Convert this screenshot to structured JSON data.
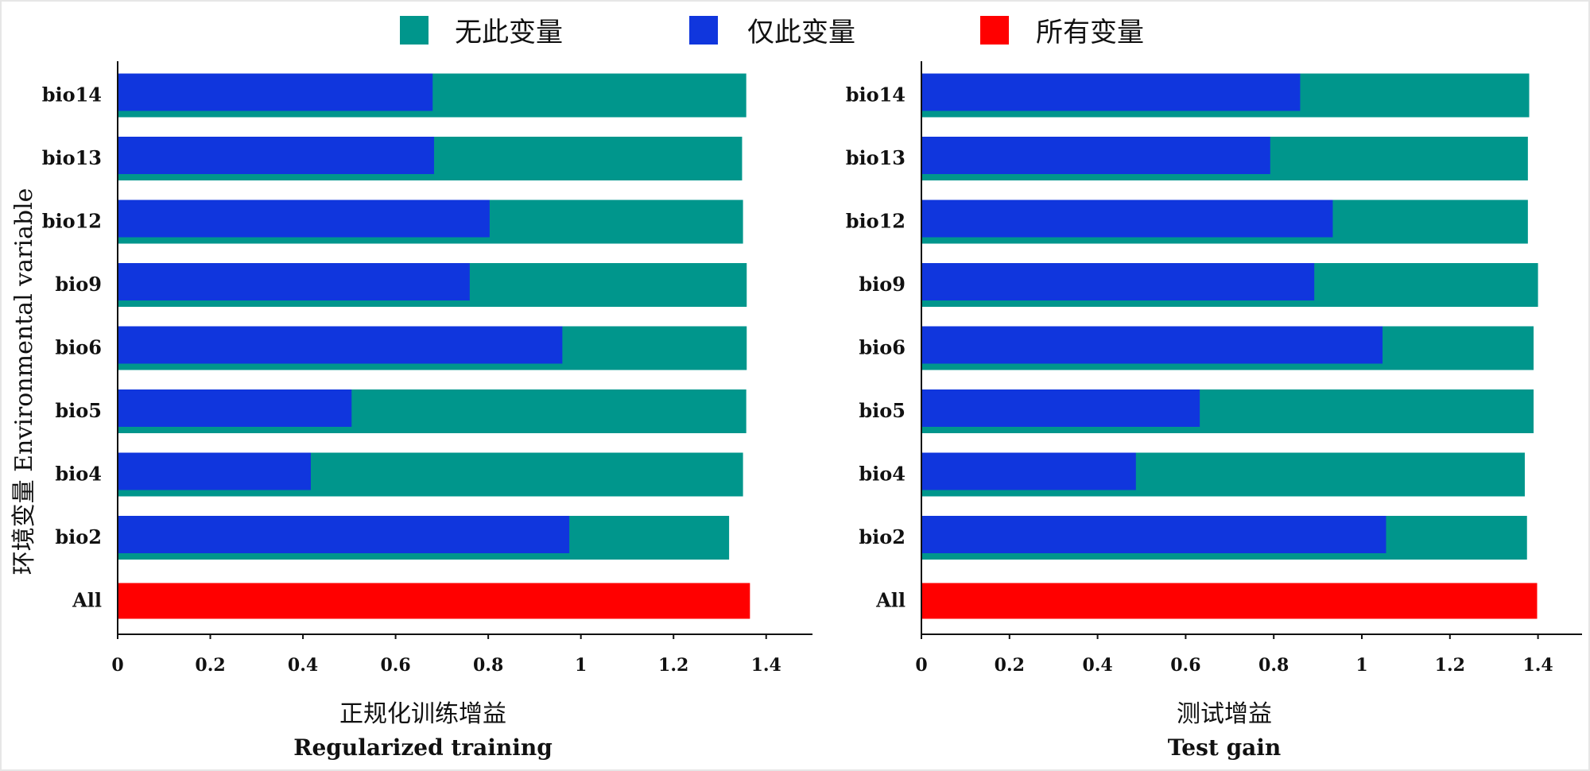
{
  "colors": {
    "without": "#00968C",
    "only": "#1036DD",
    "all": "#FF0000",
    "axis": "#111111"
  },
  "legend": [
    {
      "key": "without",
      "label": "无此变量"
    },
    {
      "key": "only",
      "label": "仅此变量"
    },
    {
      "key": "all",
      "label": "所有变量"
    }
  ],
  "ylabel": "环境变量 Environmental variable",
  "chart_data": [
    {
      "type": "bar",
      "orientation": "horizontal",
      "xlabel_cn": "正规化训练增益",
      "xlabel_en": "Regularized training",
      "xlim": [
        0,
        1.5
      ],
      "xticks": [
        "0",
        "0.2",
        "0.4",
        "0.6",
        "0.8",
        "1",
        "1.2",
        "1.4"
      ],
      "categories": [
        "bio14",
        "bio13",
        "bio12",
        "bio9",
        "bio6",
        "bio5",
        "bio4",
        "bio2",
        "All"
      ],
      "series": [
        {
          "name": "无此变量",
          "key": "without",
          "values": [
            1.357,
            1.348,
            1.35,
            1.358,
            1.358,
            1.357,
            1.35,
            1.32,
            null
          ]
        },
        {
          "name": "仅此变量",
          "key": "only",
          "values": [
            0.68,
            0.683,
            0.803,
            0.76,
            0.96,
            0.505,
            0.417,
            0.975,
            null
          ]
        },
        {
          "name": "所有变量",
          "key": "all",
          "values": [
            null,
            null,
            null,
            null,
            null,
            null,
            null,
            null,
            1.365
          ]
        }
      ]
    },
    {
      "type": "bar",
      "orientation": "horizontal",
      "xlabel_cn": "测试增益",
      "xlabel_en": "Test gain",
      "xlim": [
        0,
        1.5
      ],
      "xticks": [
        "0",
        "0.2",
        "0.4",
        "0.6",
        "0.8",
        "1",
        "1.2",
        "1.4"
      ],
      "categories": [
        "bio14",
        "bio13",
        "bio12",
        "bio9",
        "bio6",
        "bio5",
        "bio4",
        "bio2",
        "All"
      ],
      "series": [
        {
          "name": "无此变量",
          "key": "without",
          "values": [
            1.38,
            1.377,
            1.377,
            1.4,
            1.39,
            1.39,
            1.37,
            1.375,
            null
          ]
        },
        {
          "name": "仅此变量",
          "key": "only",
          "values": [
            0.86,
            0.792,
            0.934,
            0.892,
            1.047,
            0.632,
            0.487,
            1.055,
            null
          ]
        },
        {
          "name": "所有变量",
          "key": "all",
          "values": [
            null,
            null,
            null,
            null,
            null,
            null,
            null,
            null,
            1.398
          ]
        }
      ]
    }
  ]
}
